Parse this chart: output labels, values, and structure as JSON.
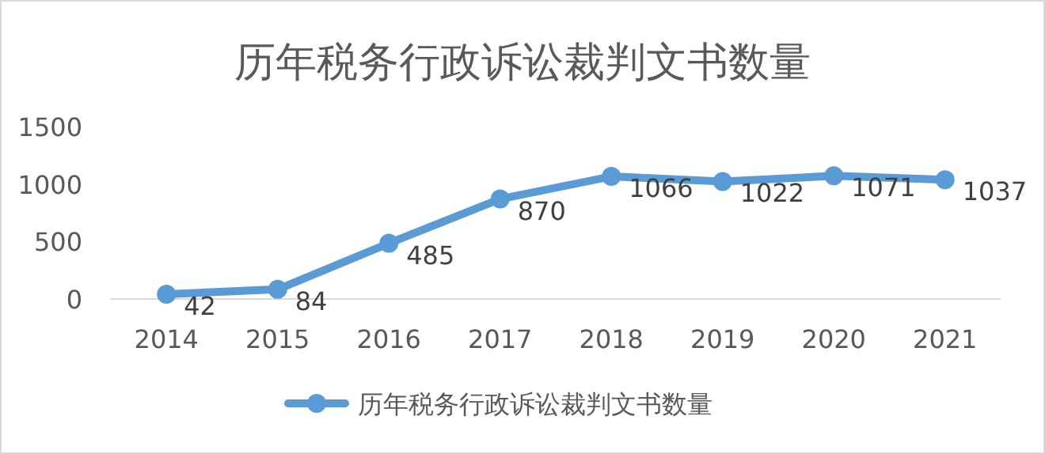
{
  "chart_data": {
    "type": "line",
    "title": "历年税务行政诉讼裁判文书数量",
    "categories": [
      "2014",
      "2015",
      "2016",
      "2017",
      "2018",
      "2019",
      "2020",
      "2021"
    ],
    "series": [
      {
        "name": "历年税务行政诉讼裁判文书数量",
        "color": "#5b9bd5",
        "values": [
          42,
          84,
          485,
          870,
          1066,
          1022,
          1071,
          1037
        ]
      }
    ],
    "ylim": [
      0,
      1500
    ],
    "yticks": [
      0,
      500,
      1000,
      1500
    ],
    "legend": "bottom",
    "marker": "circle",
    "data_labels": true
  }
}
